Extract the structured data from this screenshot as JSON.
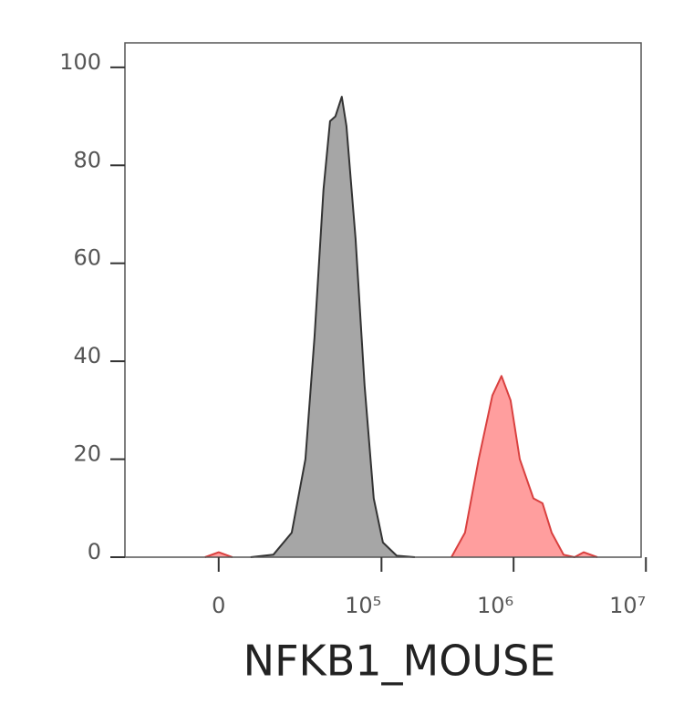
{
  "chart_data": {
    "type": "histogram-overlay",
    "x_label": "NFKB1_MOUSE",
    "xscale": "biexponential",
    "xlim": [
      -29000,
      9200000
    ],
    "xticks": [
      0,
      {
        "value": 100000,
        "label": "10⁵"
      },
      {
        "value": 1000000,
        "label": "10⁶"
      },
      {
        "value": 10000000,
        "label": "10⁷"
      }
    ],
    "ylim": [
      0,
      105
    ],
    "yticks": [
      0,
      20,
      40,
      60,
      80,
      100
    ],
    "series": [
      {
        "color": "#a6a6a6",
        "line_color": "#333333",
        "x": [
          6900,
          13000,
          19400,
          25400,
          30200,
          35600,
          40100,
          44200,
          49600,
          53900,
          63400,
          74300,
          87300,
          102500,
          130400,
          179000
        ],
        "values": [
          0,
          0.5,
          5,
          20,
          45,
          75,
          89,
          90,
          94,
          88,
          65,
          35,
          12,
          3,
          0.3,
          0
        ]
      },
      {
        "color": "#ff9e9e",
        "line_color": "#d9403f",
        "x": [
          -2830,
          0,
          2830,
          null,
          339000,
          429000,
          545000,
          691000,
          810000,
          950000,
          1114000,
          1411000,
          1654000,
          1940000,
          2386000,
          2890000,
          3387000,
          4295000
        ],
        "values": [
          0,
          1,
          0,
          null,
          0,
          5,
          20,
          33,
          37,
          32,
          20,
          12,
          11,
          5,
          0.5,
          0,
          1,
          0
        ]
      }
    ]
  }
}
